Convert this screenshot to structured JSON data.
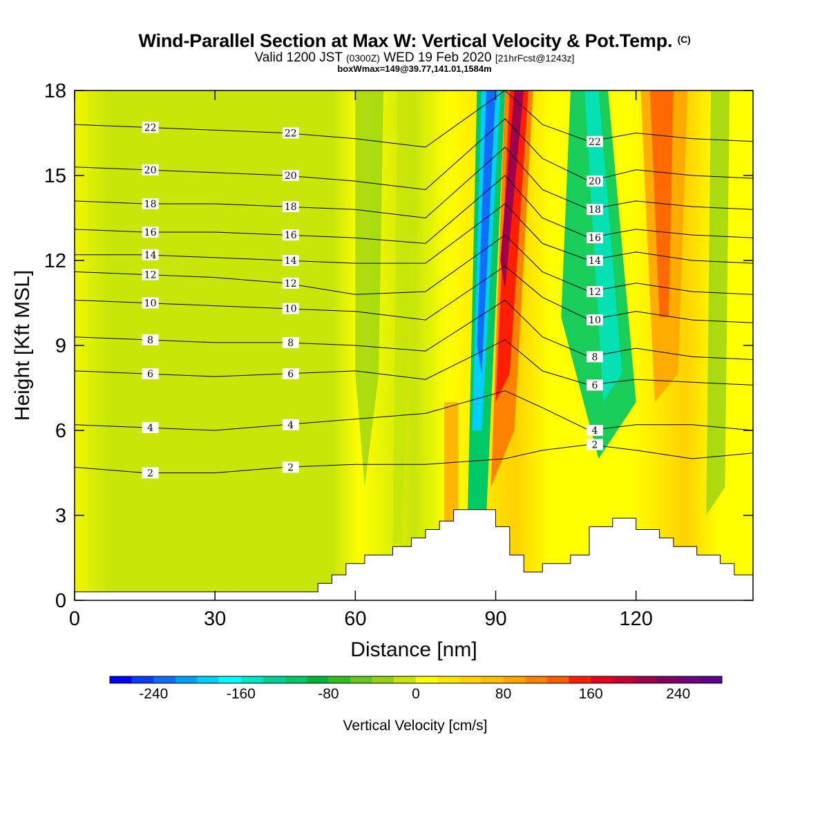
{
  "title": {
    "main": "Wind-Parallel Section at Max W: Vertical Velocity & Pot.Temp.",
    "copyright": "(C)",
    "valid_prefix": "Valid 1200 JST",
    "valid_utc": "(0300Z)",
    "valid_date": "WED 19 Feb 2020",
    "forecast": "[21hrFcst@1243z]",
    "box": "boxWmax=149@39.77,141.01,1584m"
  },
  "chart_data": {
    "type": "heatmap",
    "xlabel": "Distance [nm]",
    "ylabel": "Height [Kft MSL]",
    "xlim": [
      0,
      145
    ],
    "ylim": [
      0,
      18
    ],
    "x_ticks": [
      "0",
      "30",
      "60",
      "90",
      "120"
    ],
    "y_ticks": [
      "0",
      "3",
      "6",
      "9",
      "12",
      "15",
      "18"
    ],
    "x_tick_values": [
      0,
      30,
      60,
      90,
      120
    ],
    "y_tick_values": [
      0,
      3,
      6,
      9,
      12,
      15,
      18
    ],
    "colorbar": {
      "label": "Vertical Velocity [cm/s]",
      "tick_labels": [
        "-240",
        "-160",
        "-80",
        "0",
        "80",
        "160",
        "240"
      ],
      "tick_values": [
        -240,
        -160,
        -80,
        0,
        80,
        160,
        240
      ],
      "colors": [
        "#0000ff",
        "#0a3cff",
        "#0f6eff",
        "#00a0ff",
        "#00d0ff",
        "#00ffff",
        "#00e6c8",
        "#00d296",
        "#00c864",
        "#00b43c",
        "#32be1e",
        "#64c81e",
        "#96d214",
        "#c8e60a",
        "#ffff00",
        "#ffe600",
        "#ffd200",
        "#ffbe00",
        "#ffa500",
        "#ff8200",
        "#ff5a00",
        "#ff1e00",
        "#e6001e",
        "#c80032",
        "#a0004b",
        "#82005f",
        "#6e0078",
        "#5a008c"
      ]
    },
    "theta_contour_labels": [
      "2",
      "4",
      "6",
      "8",
      "10",
      "12",
      "14",
      "16",
      "18",
      "20",
      "22"
    ],
    "theta_contours": [
      {
        "label": "2",
        "heights": [
          4.7,
          4.5,
          4.5,
          4.7,
          4.8,
          4.8,
          5.0,
          5.3,
          5.5,
          5.3,
          5.0,
          5.2
        ]
      },
      {
        "label": "4",
        "heights": [
          6.2,
          6.1,
          6.0,
          6.2,
          6.4,
          6.6,
          7.4,
          6.8,
          6.0,
          6.2,
          6.2,
          6.0
        ]
      },
      {
        "label": "6",
        "heights": [
          8.1,
          8.0,
          7.9,
          8.0,
          8.1,
          7.8,
          9.2,
          8.1,
          7.6,
          7.8,
          7.7,
          7.6
        ]
      },
      {
        "label": "8",
        "heights": [
          9.3,
          9.2,
          9.1,
          9.1,
          9.0,
          8.8,
          10.6,
          9.3,
          8.6,
          8.9,
          8.6,
          8.5
        ]
      },
      {
        "label": "10",
        "heights": [
          10.6,
          10.5,
          10.4,
          10.3,
          10.2,
          9.9,
          11.8,
          10.7,
          9.9,
          10.2,
          9.9,
          9.8
        ]
      },
      {
        "label": "12",
        "heights": [
          11.6,
          11.5,
          11.4,
          11.2,
          10.8,
          10.9,
          12.9,
          11.6,
          10.9,
          11.2,
          10.9,
          10.8
        ]
      },
      {
        "label": "14",
        "heights": [
          12.2,
          12.2,
          12.1,
          12.0,
          11.9,
          11.9,
          14.0,
          12.6,
          12.0,
          12.3,
          12.0,
          11.9
        ]
      },
      {
        "label": "16",
        "heights": [
          13.1,
          13.0,
          13.0,
          12.9,
          12.8,
          12.6,
          15.0,
          13.5,
          12.8,
          13.1,
          12.9,
          12.8
        ]
      },
      {
        "label": "18",
        "heights": [
          14.1,
          14.0,
          14.0,
          13.9,
          13.8,
          13.5,
          16.0,
          14.5,
          13.8,
          14.1,
          13.9,
          13.8
        ]
      },
      {
        "label": "20",
        "heights": [
          15.3,
          15.2,
          15.1,
          15.0,
          14.8,
          14.5,
          17.0,
          15.6,
          14.8,
          15.2,
          15.0,
          14.9
        ]
      },
      {
        "label": "22",
        "heights": [
          16.8,
          16.7,
          16.6,
          16.5,
          16.3,
          16.0,
          18.0,
          16.8,
          16.2,
          16.5,
          16.3,
          16.2
        ]
      }
    ],
    "theta_contour_x": [
      0,
      15,
      30,
      45,
      60,
      75,
      92,
      100,
      110,
      120,
      132,
      145
    ],
    "terrain": {
      "x": [
        0,
        52,
        52,
        55,
        55,
        58,
        58,
        62,
        62,
        68,
        68,
        72,
        72,
        75,
        75,
        78,
        78,
        81,
        81,
        90,
        90,
        93,
        93,
        96,
        96,
        100,
        100,
        106,
        106,
        110,
        110,
        115,
        115,
        120,
        120,
        125,
        125,
        128,
        128,
        133,
        133,
        138,
        138,
        141,
        141,
        145
      ],
      "y": [
        0.3,
        0.3,
        0.6,
        0.6,
        0.9,
        0.9,
        1.3,
        1.3,
        1.6,
        1.6,
        1.9,
        1.9,
        2.2,
        2.2,
        2.5,
        2.5,
        2.8,
        2.8,
        3.2,
        3.2,
        2.6,
        2.6,
        1.6,
        1.6,
        1.0,
        1.0,
        1.3,
        1.3,
        1.6,
        1.6,
        2.6,
        2.6,
        2.9,
        2.9,
        2.5,
        2.5,
        2.2,
        2.2,
        1.9,
        1.9,
        1.6,
        1.6,
        1.3,
        1.3,
        0.9,
        0.9
      ]
    },
    "grid": false
  }
}
